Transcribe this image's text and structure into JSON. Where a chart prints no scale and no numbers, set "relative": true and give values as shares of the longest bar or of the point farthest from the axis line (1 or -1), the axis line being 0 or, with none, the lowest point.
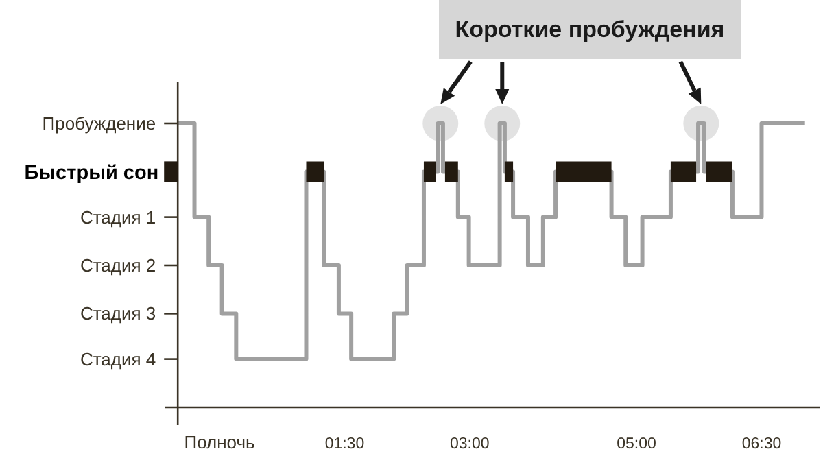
{
  "chart_data": {
    "type": "step",
    "relative": true,
    "annotations": [
      "Короткие пробуждения",
      "Пробуждение",
      "Быстрый сон",
      "Стадия 1",
      "Стадия 2",
      "Стадия 3",
      "Стадия 4"
    ],
    "xlim": [
      -0.5,
      7.2
    ],
    "xticks": [
      {
        "value": 0,
        "label": "Полночь"
      },
      {
        "value": 1.5,
        "label": "01:30"
      },
      {
        "value": 3,
        "label": "03:00"
      },
      {
        "value": 5,
        "label": "05:00"
      },
      {
        "value": 6.5,
        "label": "06:30"
      }
    ],
    "grid": false,
    "x": [
      -0.5,
      -0.3,
      -0.13,
      0.03,
      0.2,
      1.04,
      1.25,
      1.43,
      1.58,
      2.09,
      2.25,
      2.45,
      2.62,
      2.68,
      2.86,
      2.99,
      3.36,
      3.42,
      3.52,
      3.7,
      3.88,
      4.03,
      4.7,
      4.87,
      5.07,
      5.41,
      5.74,
      5.81,
      6.15,
      6.5,
      7.02
    ],
    "series": [
      {
        "color": "#a0a0a0",
        "values": [
          1,
          0.67,
          0.5,
          0.33,
          0.17,
          0.83,
          0.5,
          0.33,
          0.17,
          0.33,
          0.5,
          0.83,
          1,
          0.83,
          0.67,
          0.5,
          1,
          0.83,
          0.67,
          0.5,
          0.67,
          0.83,
          0.67,
          0.5,
          0.67,
          0.83,
          1,
          0.83,
          0.67,
          1,
          1
        ]
      },
      {
        "type": "line",
        "color": "#221a10",
        "values": [
          null,
          null,
          null,
          null,
          null,
          0.83,
          0.83,
          null,
          null,
          null,
          null,
          0.83,
          0.83,
          0.83,
          0.83,
          null,
          null,
          0.83,
          0.83,
          null,
          null,
          0.83,
          0.83,
          null,
          null,
          0.83,
          0.83,
          0.83,
          0.83,
          null,
          null
        ]
      }
    ]
  }
}
